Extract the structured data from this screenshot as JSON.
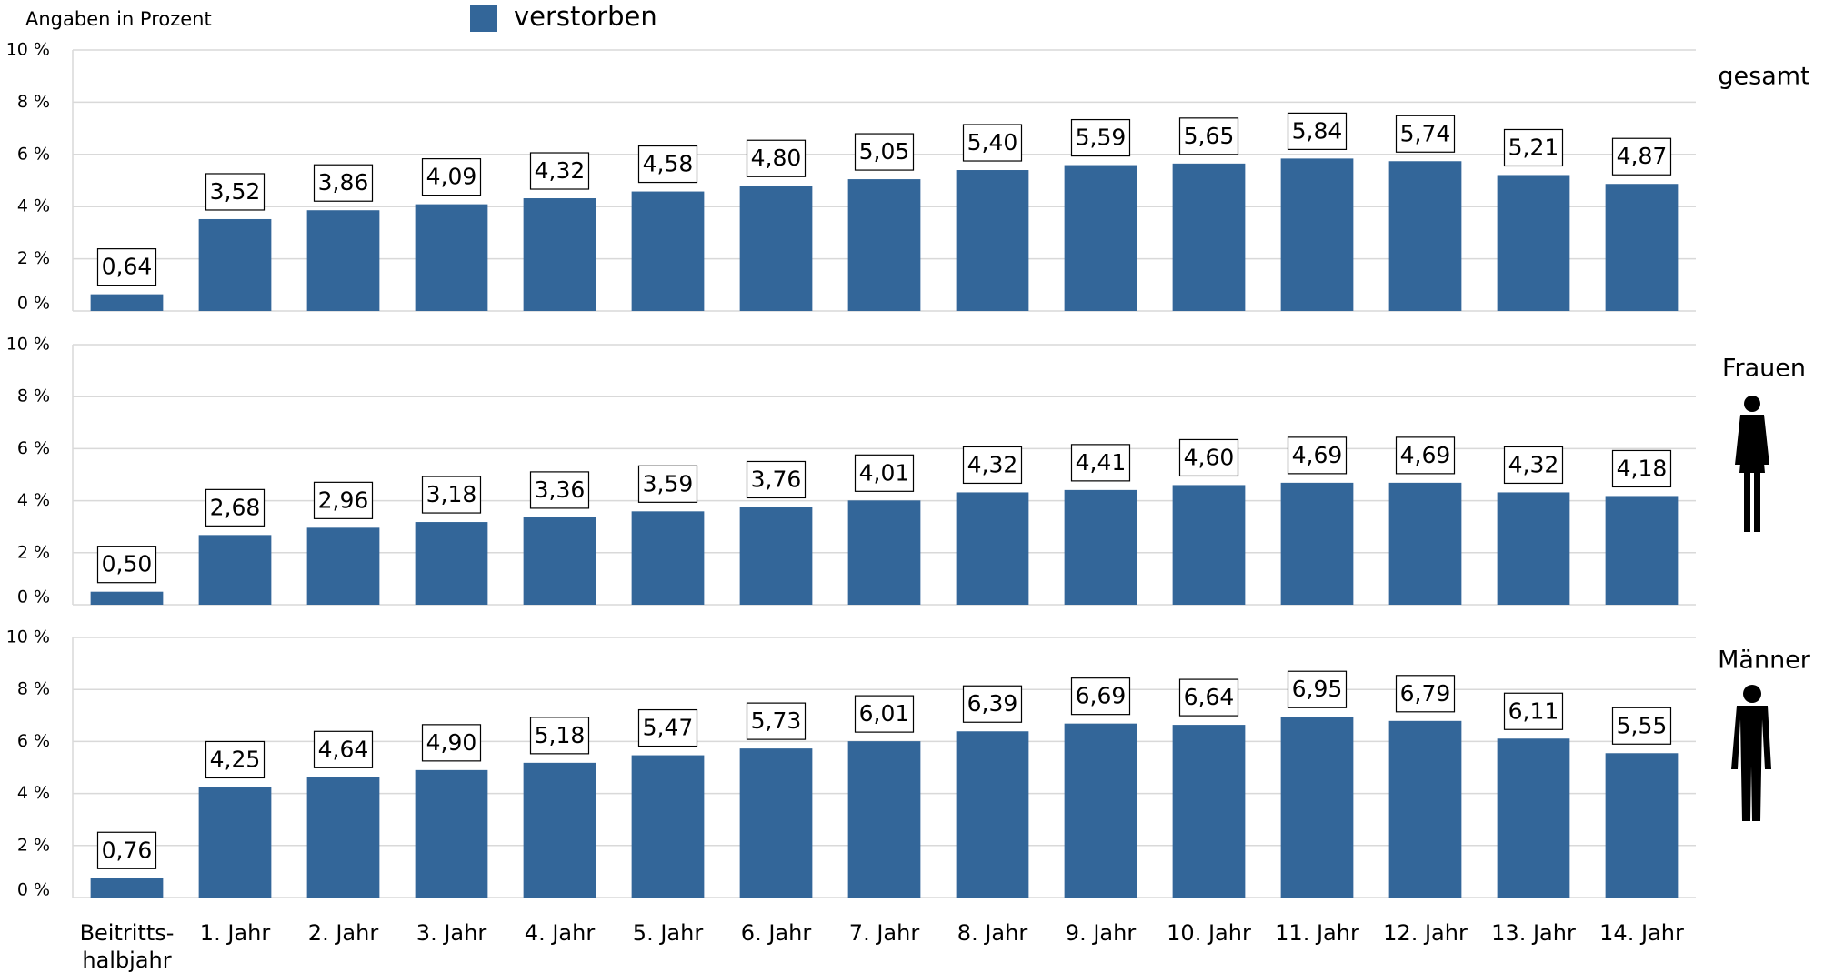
{
  "note": "Angaben in Prozent",
  "legend": {
    "name": "verstorben",
    "color": "#336699"
  },
  "chart_data": [
    {
      "type": "bar",
      "title": "gesamt",
      "color": "#336699",
      "values": [
        0.64,
        3.52,
        3.86,
        4.09,
        4.32,
        4.58,
        4.8,
        5.05,
        5.4,
        5.59,
        5.65,
        5.84,
        5.74,
        5.21,
        4.87
      ],
      "value_labels": [
        "0,64",
        "3,52",
        "3,86",
        "4,09",
        "4,32",
        "4,58",
        "4,80",
        "5,05",
        "5,40",
        "5,59",
        "5,65",
        "5,84",
        "5,74",
        "5,21",
        "4,87"
      ],
      "ylim": [
        0,
        10
      ],
      "yticks": [
        {
          "value": 0,
          "label": "0 %"
        },
        {
          "value": 2,
          "label": "2 %"
        },
        {
          "value": 4,
          "label": "4 %"
        },
        {
          "value": 6,
          "label": "6 %"
        },
        {
          "value": 8,
          "label": "8 %"
        },
        {
          "value": 10,
          "label": "10 %"
        }
      ],
      "grid": true
    },
    {
      "type": "bar",
      "title": "Frauen",
      "color": "#336699",
      "values": [
        0.5,
        2.68,
        2.96,
        3.18,
        3.36,
        3.59,
        3.76,
        4.01,
        4.32,
        4.41,
        4.6,
        4.69,
        4.69,
        4.32,
        4.18
      ],
      "value_labels": [
        "0,50",
        "2,68",
        "2,96",
        "3,18",
        "3,36",
        "3,59",
        "3,76",
        "4,01",
        "4,32",
        "4,41",
        "4,60",
        "4,69",
        "4,69",
        "4,32",
        "4,18"
      ],
      "ylim": [
        0,
        10
      ],
      "yticks": [
        {
          "value": 0,
          "label": "0 %"
        },
        {
          "value": 2,
          "label": "2 %"
        },
        {
          "value": 4,
          "label": "4 %"
        },
        {
          "value": 6,
          "label": "6 %"
        },
        {
          "value": 8,
          "label": "8 %"
        },
        {
          "value": 10,
          "label": "10 %"
        }
      ],
      "grid": true
    },
    {
      "type": "bar",
      "title": "Männer",
      "color": "#336699",
      "categories": [
        "Beitritts-\nhalbjahr",
        "1. Jahr",
        "2. Jahr",
        "3. Jahr",
        "4. Jahr",
        "5. Jahr",
        "6. Jahr",
        "7. Jahr",
        "8. Jahr",
        "9. Jahr",
        "10. Jahr",
        "11. Jahr",
        "12. Jahr",
        "13. Jahr",
        "14. Jahr"
      ],
      "values": [
        0.76,
        4.25,
        4.64,
        4.9,
        5.18,
        5.47,
        5.73,
        6.01,
        6.39,
        6.69,
        6.64,
        6.95,
        6.79,
        6.11,
        5.55
      ],
      "value_labels": [
        "0,76",
        "4,25",
        "4,64",
        "4,90",
        "5,18",
        "5,47",
        "5,73",
        "6,01",
        "6,39",
        "6,69",
        "6,64",
        "6,95",
        "6,79",
        "6,11",
        "5,55"
      ],
      "ylim": [
        0,
        10
      ],
      "yticks": [
        {
          "value": 0,
          "label": "0 %"
        },
        {
          "value": 2,
          "label": "2 %"
        },
        {
          "value": 4,
          "label": "4 %"
        },
        {
          "value": 6,
          "label": "6 %"
        },
        {
          "value": 8,
          "label": "8 %"
        },
        {
          "value": 10,
          "label": "10 %"
        }
      ],
      "grid": true
    }
  ]
}
